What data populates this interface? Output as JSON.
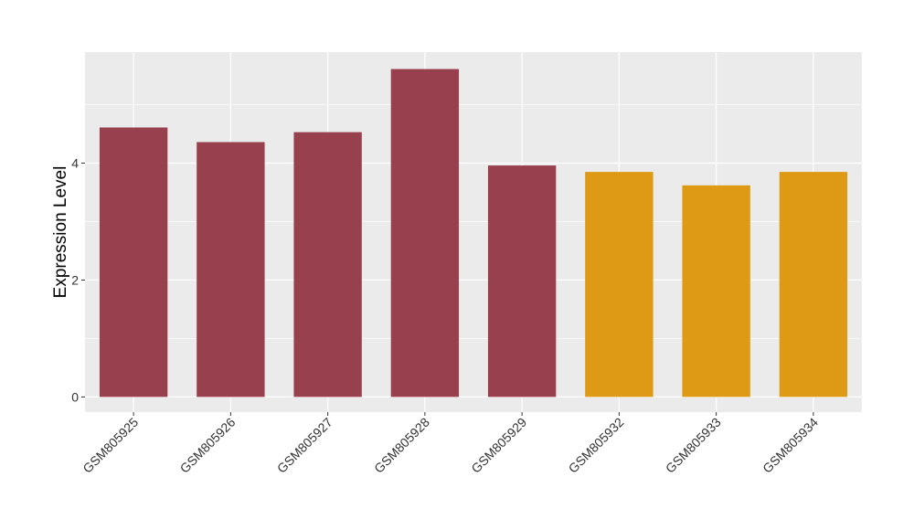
{
  "chart_data": {
    "type": "bar",
    "title": "",
    "xlabel": "",
    "ylabel": "Expression Level",
    "categories": [
      "GSM805925",
      "GSM805926",
      "GSM805927",
      "GSM805928",
      "GSM805929",
      "GSM805932",
      "GSM805933",
      "GSM805934"
    ],
    "values": [
      4.61,
      4.36,
      4.53,
      5.61,
      3.96,
      3.85,
      3.62,
      3.85
    ],
    "bar_colors": [
      "#99404F",
      "#99404F",
      "#99404F",
      "#99404F",
      "#99404F",
      "#DE9A15",
      "#DE9A15",
      "#DE9A15"
    ],
    "ylim": [
      -0.26,
      5.9
    ],
    "y_ticks": [
      0,
      2,
      4
    ],
    "y_tick_labels": [
      "0",
      "2",
      "4"
    ],
    "grid": true,
    "legend": "none",
    "colors": {
      "panel_background": "#EBEBEB",
      "grid_line": "#FFFFFF"
    }
  }
}
